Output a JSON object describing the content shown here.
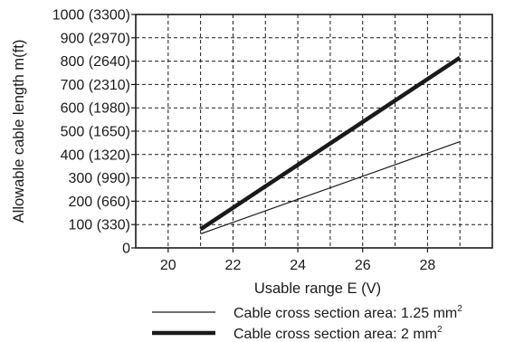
{
  "chart_data": {
    "type": "line",
    "title": "",
    "xlabel": "Usable range E (V)",
    "ylabel": "Allowable cable length m(ft)",
    "xlim": [
      19,
      30
    ],
    "ylim": [
      0,
      1000
    ],
    "grid": true,
    "x_ticks": [
      {
        "value": 20,
        "label": "20"
      },
      {
        "value": 22,
        "label": "22"
      },
      {
        "value": 24,
        "label": "24"
      },
      {
        "value": 26,
        "label": "26"
      },
      {
        "value": 28,
        "label": "28"
      }
    ],
    "y_ticks": [
      {
        "value": 0,
        "label": "0"
      },
      {
        "value": 100,
        "label": "100 (330)"
      },
      {
        "value": 200,
        "label": "200 (660)"
      },
      {
        "value": 300,
        "label": "300 (990)"
      },
      {
        "value": 400,
        "label": "400 (1320)"
      },
      {
        "value": 500,
        "label": "500 (1650)"
      },
      {
        "value": 600,
        "label": "600 (1980)"
      },
      {
        "value": 700,
        "label": "700 (2310)"
      },
      {
        "value": 800,
        "label": "800 (2640)"
      },
      {
        "value": 900,
        "label": "900 (2970)"
      },
      {
        "value": 1000,
        "label": "1000 (3300)"
      }
    ],
    "legend_position": "bottom",
    "series": [
      {
        "name": "Cable cross section area: 1.25 mm",
        "superscript": "2",
        "x": [
          21,
          29
        ],
        "y": [
          60,
          455
        ],
        "color": "#1a1a1a",
        "style": "thin"
      },
      {
        "name": "Cable cross section area: 2 mm",
        "superscript": "2",
        "x": [
          21,
          29
        ],
        "y": [
          80,
          815
        ],
        "color": "#1a1a1a",
        "style": "thick"
      }
    ]
  }
}
